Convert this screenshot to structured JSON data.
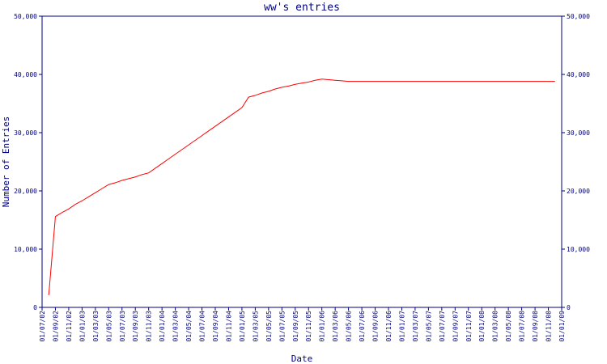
{
  "chart_data": {
    "type": "line",
    "title": "ww's entries",
    "x_label": "Date",
    "y_label": "Number of Entries",
    "categories": [
      "01/07/02",
      null,
      "01/09/02",
      null,
      "01/11/02",
      null,
      "01/01/03",
      null,
      "01/03/03",
      null,
      "01/05/03",
      null,
      "01/07/03",
      null,
      "01/09/03",
      null,
      "01/11/03",
      null,
      "01/01/04",
      null,
      "01/03/04",
      null,
      "01/05/04",
      null,
      "01/07/04",
      null,
      "01/09/04",
      null,
      "01/11/04",
      null,
      "01/01/05",
      null,
      "01/03/05",
      null,
      "01/05/05",
      null,
      "01/07/05",
      null,
      "01/09/05",
      null,
      "01/11/05",
      null,
      "01/01/06",
      null,
      "01/03/06",
      null,
      "01/05/06",
      null,
      "01/07/06",
      null,
      "01/09/06",
      null,
      "01/11/06",
      null,
      "01/01/07",
      null,
      "01/03/07",
      null,
      "01/05/07",
      null,
      "01/07/07",
      null,
      "01/09/07",
      null,
      "01/11/07",
      null,
      "01/01/08",
      null,
      "01/03/08",
      null,
      "01/05/08",
      null,
      "01/07/08",
      null,
      "01/09/08",
      null,
      "01/11/08",
      null,
      "01/01/09"
    ],
    "series": [
      {
        "name": "ww",
        "color": "#ff0000",
        "values": [
          null,
          2100,
          15600,
          16300,
          16900,
          17700,
          18300,
          19000,
          19700,
          20400,
          21100,
          21400,
          21800,
          22100,
          22400,
          22800,
          23100,
          23900,
          24700,
          25500,
          26300,
          27100,
          27900,
          28700,
          29500,
          30300,
          31100,
          31900,
          32700,
          33500,
          34300,
          36100,
          36400,
          36800,
          37100,
          37500,
          37800,
          38000,
          38300,
          38500,
          38700,
          39000,
          39200,
          39100,
          39000,
          38900,
          38800,
          38800,
          38800,
          38800,
          38800,
          38800,
          38800,
          38800,
          38800,
          38800,
          38800,
          38800,
          38800,
          38800,
          38800,
          38800,
          38800,
          38800,
          38800,
          38800,
          38800,
          38800,
          38800,
          38800,
          38800,
          38800,
          38800,
          38800,
          38800,
          38800,
          38800,
          38800,
          null
        ]
      }
    ],
    "ylim": [
      0,
      50000
    ],
    "yticks": [
      0,
      {
        "value": 10000,
        "label": "10,000"
      },
      {
        "value": 20000,
        "label": "20,000"
      },
      {
        "value": 30000,
        "label": "30,000"
      },
      {
        "value": 40000,
        "label": "40,000"
      },
      {
        "value": 50000,
        "label": "50,000"
      }
    ],
    "y2lim": [
      0,
      50000
    ],
    "y2ticks": [
      0,
      {
        "value": 10000,
        "label": "10,000"
      },
      {
        "value": 20000,
        "label": "20,000"
      },
      {
        "value": 30000,
        "label": "30,000"
      },
      {
        "value": 40000,
        "label": "40,000"
      },
      {
        "value": 50000,
        "label": "50,000"
      }
    ],
    "grid": false
  }
}
